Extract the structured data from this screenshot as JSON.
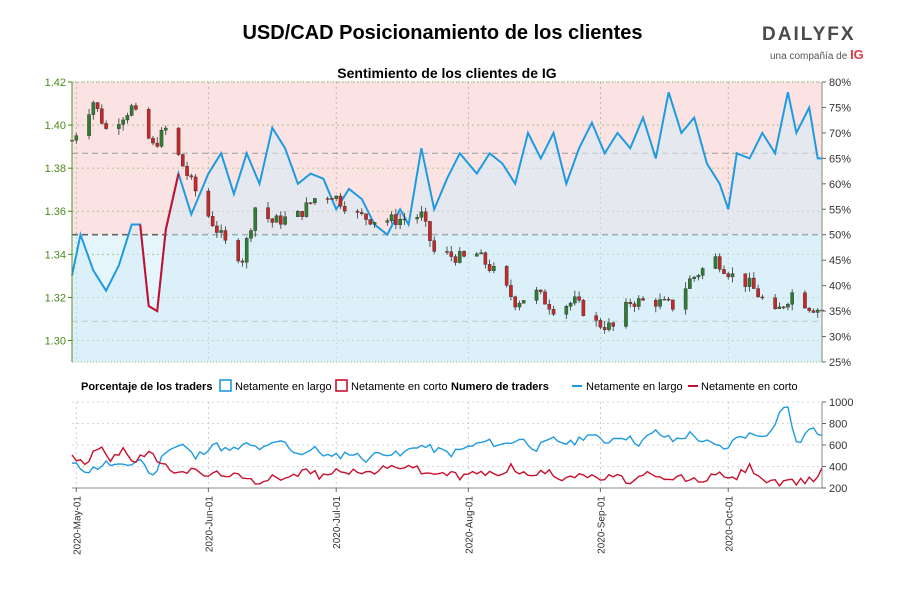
{
  "header": {
    "title": "USD/CAD Posicionamiento de los clientes",
    "logo_main": "DAILYFX",
    "logo_sub": "una compañía de",
    "logo_ig": "IG"
  },
  "colors": {
    "price_up": "#2e7d32",
    "price_down": "#c62828",
    "net_long": "#1e9be0",
    "net_short": "#c8102e",
    "bullish_band": "#fbe3e3",
    "bearish_band": "#e6f4fb",
    "axis_green": "#4a8a1a"
  },
  "legend": {
    "pct_title": "Porcentaje de los traders",
    "pct_long": "Netamente en largo",
    "pct_short": "Netamente en corto",
    "num_title": "Numero de traders",
    "num_long": "Netamente en largo",
    "num_short": "Netamente en corto"
  },
  "chart_data": [
    {
      "type": "line",
      "title": "Sentimiento de los clientes de IG",
      "price_axis": {
        "ylim": [
          1.29,
          1.42
        ],
        "ticks": [
          "1.42",
          "1.40",
          "1.38",
          "1.36",
          "1.34",
          "1.32",
          "1.30"
        ]
      },
      "pct_axis": {
        "ylim": [
          25,
          80
        ],
        "ticks": [
          "80%",
          "75%",
          "70%",
          "65%",
          "60%",
          "55%",
          "50%",
          "45%",
          "40%",
          "35%",
          "30%",
          "25%"
        ]
      },
      "date_range": [
        "2020-04-30",
        "2020-10-23"
      ],
      "x_ticks": [
        "2020-May-01",
        "2020-Jun-01",
        "2020-Jul-01",
        "2020-Aug-01",
        "2020-Sep-01",
        "2020-Oct-01"
      ],
      "reference_lines_pct": [
        66,
        50,
        33
      ],
      "price_keypoints": [
        [
          "2020-04-30",
          1.393
        ],
        [
          "2020-05-05",
          1.411
        ],
        [
          "2020-05-08",
          1.398
        ],
        [
          "2020-05-14",
          1.408
        ],
        [
          "2020-05-19",
          1.39
        ],
        [
          "2020-05-22",
          1.398
        ],
        [
          "2020-05-27",
          1.377
        ],
        [
          "2020-06-01",
          1.358
        ],
        [
          "2020-06-05",
          1.345
        ],
        [
          "2020-06-09",
          1.338
        ],
        [
          "2020-06-12",
          1.362
        ],
        [
          "2020-06-16",
          1.355
        ],
        [
          "2020-06-22",
          1.358
        ],
        [
          "2020-06-26",
          1.366
        ],
        [
          "2020-06-30",
          1.368
        ],
        [
          "2020-07-06",
          1.358
        ],
        [
          "2020-07-10",
          1.356
        ],
        [
          "2020-07-15",
          1.356
        ],
        [
          "2020-07-21",
          1.358
        ],
        [
          "2020-07-24",
          1.341
        ],
        [
          "2020-07-31",
          1.338
        ],
        [
          "2020-08-03",
          1.34
        ],
        [
          "2020-08-07",
          1.332
        ],
        [
          "2020-08-12",
          1.318
        ],
        [
          "2020-08-17",
          1.322
        ],
        [
          "2020-08-21",
          1.315
        ],
        [
          "2020-08-26",
          1.318
        ],
        [
          "2020-08-31",
          1.308
        ],
        [
          "2020-09-04",
          1.306
        ],
        [
          "2020-09-08",
          1.318
        ],
        [
          "2020-09-14",
          1.318
        ],
        [
          "2020-09-18",
          1.316
        ],
        [
          "2020-09-22",
          1.328
        ],
        [
          "2020-09-28",
          1.338
        ],
        [
          "2020-10-02",
          1.33
        ],
        [
          "2020-10-06",
          1.326
        ],
        [
          "2020-10-12",
          1.312
        ],
        [
          "2020-10-16",
          1.322
        ],
        [
          "2020-10-20",
          1.316
        ],
        [
          "2020-10-23",
          1.314
        ]
      ],
      "net_long_pct": [
        [
          "2020-04-30",
          42
        ],
        [
          "2020-05-02",
          50
        ],
        [
          "2020-05-05",
          43
        ],
        [
          "2020-05-08",
          39
        ],
        [
          "2020-05-11",
          44
        ],
        [
          "2020-05-14",
          52
        ],
        [
          "2020-05-16",
          52
        ],
        [
          "2020-05-18",
          36
        ],
        [
          "2020-05-20",
          35
        ],
        [
          "2020-05-22",
          51
        ],
        [
          "2020-05-25",
          62
        ],
        [
          "2020-05-28",
          54
        ],
        [
          "2020-06-01",
          62
        ],
        [
          "2020-06-04",
          66
        ],
        [
          "2020-06-07",
          58
        ],
        [
          "2020-06-10",
          66
        ],
        [
          "2020-06-13",
          60
        ],
        [
          "2020-06-16",
          71
        ],
        [
          "2020-06-19",
          67
        ],
        [
          "2020-06-22",
          60
        ],
        [
          "2020-06-25",
          62
        ],
        [
          "2020-06-28",
          61
        ],
        [
          "2020-07-01",
          55
        ],
        [
          "2020-07-04",
          59
        ],
        [
          "2020-07-07",
          57
        ],
        [
          "2020-07-10",
          52
        ],
        [
          "2020-07-13",
          50
        ],
        [
          "2020-07-16",
          55
        ],
        [
          "2020-07-18",
          52
        ],
        [
          "2020-07-21",
          67
        ],
        [
          "2020-07-24",
          55
        ],
        [
          "2020-07-27",
          61
        ],
        [
          "2020-07-30",
          66
        ],
        [
          "2020-08-03",
          62
        ],
        [
          "2020-08-06",
          66
        ],
        [
          "2020-08-09",
          64
        ],
        [
          "2020-08-12",
          60
        ],
        [
          "2020-08-15",
          70
        ],
        [
          "2020-08-18",
          65
        ],
        [
          "2020-08-21",
          70
        ],
        [
          "2020-08-24",
          60
        ],
        [
          "2020-08-27",
          67
        ],
        [
          "2020-08-30",
          72
        ],
        [
          "2020-09-02",
          66
        ],
        [
          "2020-09-05",
          70
        ],
        [
          "2020-09-08",
          67
        ],
        [
          "2020-09-11",
          73
        ],
        [
          "2020-09-14",
          65
        ],
        [
          "2020-09-17",
          78
        ],
        [
          "2020-09-20",
          70
        ],
        [
          "2020-09-23",
          73
        ],
        [
          "2020-09-26",
          64
        ],
        [
          "2020-09-29",
          60
        ],
        [
          "2020-10-01",
          55
        ],
        [
          "2020-10-03",
          66
        ],
        [
          "2020-10-06",
          65
        ],
        [
          "2020-10-09",
          70
        ],
        [
          "2020-10-12",
          66
        ],
        [
          "2020-10-15",
          78
        ],
        [
          "2020-10-17",
          70
        ],
        [
          "2020-10-20",
          75
        ],
        [
          "2020-10-22",
          65
        ],
        [
          "2020-10-23",
          65
        ]
      ]
    },
    {
      "type": "line",
      "y_axis": {
        "ylim": [
          200,
          1000
        ],
        "ticks": [
          "1000",
          "800",
          "600",
          "400",
          "200"
        ]
      },
      "series": [
        {
          "name": "Netamente en largo",
          "keypoints": [
            [
              "2020-04-30",
              420
            ],
            [
              "2020-05-04",
              360
            ],
            [
              "2020-05-08",
              430
            ],
            [
              "2020-05-12",
              390
            ],
            [
              "2020-05-16",
              470
            ],
            [
              "2020-05-19",
              300
            ],
            [
              "2020-05-22",
              560
            ],
            [
              "2020-05-26",
              600
            ],
            [
              "2020-05-29",
              480
            ],
            [
              "2020-06-02",
              610
            ],
            [
              "2020-06-06",
              540
            ],
            [
              "2020-06-10",
              600
            ],
            [
              "2020-06-14",
              560
            ],
            [
              "2020-06-18",
              640
            ],
            [
              "2020-06-22",
              520
            ],
            [
              "2020-06-26",
              560
            ],
            [
              "2020-06-30",
              480
            ],
            [
              "2020-07-04",
              530
            ],
            [
              "2020-07-08",
              470
            ],
            [
              "2020-07-12",
              540
            ],
            [
              "2020-07-16",
              500
            ],
            [
              "2020-07-20",
              600
            ],
            [
              "2020-07-24",
              560
            ],
            [
              "2020-07-28",
              520
            ],
            [
              "2020-08-01",
              580
            ],
            [
              "2020-08-05",
              630
            ],
            [
              "2020-08-09",
              600
            ],
            [
              "2020-08-13",
              660
            ],
            [
              "2020-08-17",
              570
            ],
            [
              "2020-08-21",
              650
            ],
            [
              "2020-08-25",
              610
            ],
            [
              "2020-08-29",
              700
            ],
            [
              "2020-09-02",
              630
            ],
            [
              "2020-09-06",
              690
            ],
            [
              "2020-09-10",
              620
            ],
            [
              "2020-09-14",
              720
            ],
            [
              "2020-09-18",
              640
            ],
            [
              "2020-09-22",
              700
            ],
            [
              "2020-09-26",
              620
            ],
            [
              "2020-09-30",
              560
            ],
            [
              "2020-10-04",
              690
            ],
            [
              "2020-10-08",
              700
            ],
            [
              "2020-10-11",
              720
            ],
            [
              "2020-10-13",
              900
            ],
            [
              "2020-10-15",
              960
            ],
            [
              "2020-10-17",
              600
            ],
            [
              "2020-10-20",
              740
            ],
            [
              "2020-10-23",
              710
            ]
          ]
        },
        {
          "name": "Netamente en corto",
          "keypoints": [
            [
              "2020-04-30",
              520
            ],
            [
              "2020-05-03",
              400
            ],
            [
              "2020-05-06",
              580
            ],
            [
              "2020-05-09",
              480
            ],
            [
              "2020-05-12",
              560
            ],
            [
              "2020-05-15",
              430
            ],
            [
              "2020-05-18",
              560
            ],
            [
              "2020-05-21",
              400
            ],
            [
              "2020-05-24",
              370
            ],
            [
              "2020-05-28",
              360
            ],
            [
              "2020-06-01",
              320
            ],
            [
              "2020-06-05",
              340
            ],
            [
              "2020-06-09",
              290
            ],
            [
              "2020-06-12",
              250
            ],
            [
              "2020-06-16",
              320
            ],
            [
              "2020-06-20",
              290
            ],
            [
              "2020-06-24",
              370
            ],
            [
              "2020-06-28",
              300
            ],
            [
              "2020-07-02",
              380
            ],
            [
              "2020-07-06",
              330
            ],
            [
              "2020-07-10",
              360
            ],
            [
              "2020-07-14",
              390
            ],
            [
              "2020-07-18",
              420
            ],
            [
              "2020-07-22",
              330
            ],
            [
              "2020-07-26",
              350
            ],
            [
              "2020-07-30",
              300
            ],
            [
              "2020-08-03",
              350
            ],
            [
              "2020-08-07",
              320
            ],
            [
              "2020-08-11",
              400
            ],
            [
              "2020-08-15",
              310
            ],
            [
              "2020-08-19",
              350
            ],
            [
              "2020-08-23",
              300
            ],
            [
              "2020-08-27",
              340
            ],
            [
              "2020-08-31",
              280
            ],
            [
              "2020-09-04",
              310
            ],
            [
              "2020-09-08",
              260
            ],
            [
              "2020-09-12",
              320
            ],
            [
              "2020-09-16",
              270
            ],
            [
              "2020-09-20",
              300
            ],
            [
              "2020-09-24",
              260
            ],
            [
              "2020-09-28",
              330
            ],
            [
              "2020-10-02",
              280
            ],
            [
              "2020-10-06",
              400
            ],
            [
              "2020-10-10",
              260
            ],
            [
              "2020-10-14",
              240
            ],
            [
              "2020-10-18",
              260
            ],
            [
              "2020-10-21",
              280
            ],
            [
              "2020-10-23",
              380
            ]
          ]
        }
      ]
    }
  ]
}
